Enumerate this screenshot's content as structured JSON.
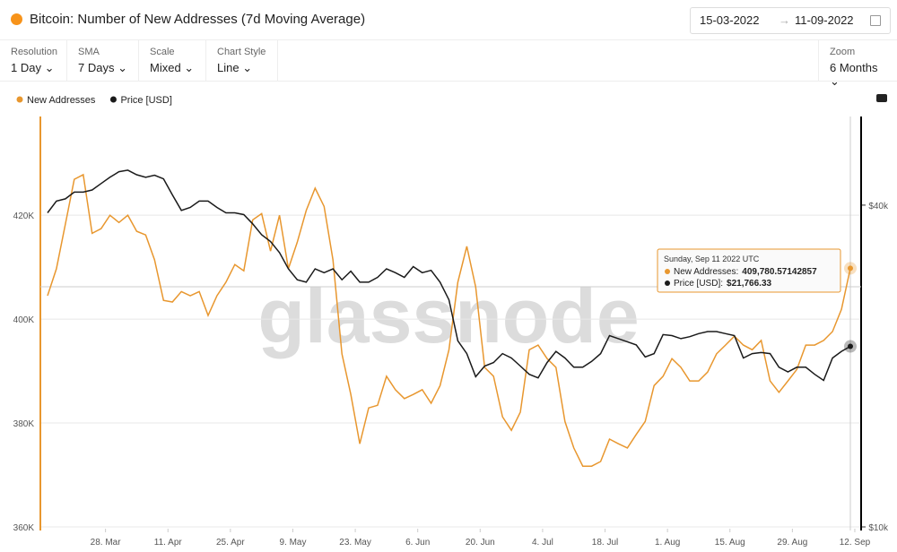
{
  "header": {
    "title": "Bitcoin: Number of New Addresses (7d Moving Average)",
    "date_from": "15-03-2022",
    "date_to": "11-09-2022"
  },
  "controls": [
    {
      "label": "Resolution",
      "value": "1 Day"
    },
    {
      "label": "SMA",
      "value": "7 Days"
    },
    {
      "label": "Scale",
      "value": "Mixed"
    },
    {
      "label": "Chart Style",
      "value": "Line"
    }
  ],
  "zoom": {
    "label": "Zoom",
    "value": "6 Months"
  },
  "watermark": "glassnode",
  "tooltip": {
    "title": "Sunday, Sep 11 2022 UTC",
    "items": [
      {
        "label": "New Addresses:",
        "value": "409,780.57142857"
      },
      {
        "label": "Price [USD]:",
        "value": "$21,766.33"
      }
    ]
  },
  "chart_data": {
    "type": "line",
    "x": [
      "2022-03-15",
      "2022-03-17",
      "2022-03-19",
      "2022-03-21",
      "2022-03-23",
      "2022-03-25",
      "2022-03-27",
      "2022-03-29",
      "2022-03-31",
      "2022-04-02",
      "2022-04-04",
      "2022-04-06",
      "2022-04-08",
      "2022-04-10",
      "2022-04-12",
      "2022-04-14",
      "2022-04-16",
      "2022-04-18",
      "2022-04-20",
      "2022-04-22",
      "2022-04-24",
      "2022-04-26",
      "2022-04-28",
      "2022-04-30",
      "2022-05-02",
      "2022-05-04",
      "2022-05-06",
      "2022-05-08",
      "2022-05-10",
      "2022-05-12",
      "2022-05-14",
      "2022-05-16",
      "2022-05-18",
      "2022-05-20",
      "2022-05-22",
      "2022-05-24",
      "2022-05-26",
      "2022-05-28",
      "2022-05-30",
      "2022-06-01",
      "2022-06-03",
      "2022-06-05",
      "2022-06-07",
      "2022-06-09",
      "2022-06-11",
      "2022-06-13",
      "2022-06-15",
      "2022-06-17",
      "2022-06-19",
      "2022-06-21",
      "2022-06-23",
      "2022-06-25",
      "2022-06-27",
      "2022-06-29",
      "2022-07-01",
      "2022-07-03",
      "2022-07-05",
      "2022-07-07",
      "2022-07-09",
      "2022-07-11",
      "2022-07-13",
      "2022-07-15",
      "2022-07-17",
      "2022-07-19",
      "2022-07-21",
      "2022-07-23",
      "2022-07-25",
      "2022-07-27",
      "2022-07-29",
      "2022-07-31",
      "2022-08-02",
      "2022-08-04",
      "2022-08-06",
      "2022-08-08",
      "2022-08-10",
      "2022-08-12",
      "2022-08-14",
      "2022-08-16",
      "2022-08-18",
      "2022-08-20",
      "2022-08-22",
      "2022-08-24",
      "2022-08-26",
      "2022-08-28",
      "2022-08-30",
      "2022-09-01",
      "2022-09-03",
      "2022-09-05",
      "2022-09-07",
      "2022-09-09",
      "2022-09-11"
    ],
    "series": [
      {
        "name": "New Addresses",
        "color": "#e8972f",
        "axis": "y",
        "values": [
          404500,
          409700,
          418300,
          426900,
          427800,
          416500,
          417400,
          420000,
          418600,
          420000,
          416900,
          416200,
          411400,
          403600,
          403300,
          405300,
          404500,
          405300,
          400700,
          404500,
          407100,
          410500,
          409300,
          419100,
          420300,
          413100,
          420000,
          409700,
          414800,
          420900,
          425200,
          421700,
          411400,
          393300,
          385500,
          376000,
          382900,
          383400,
          389000,
          386400,
          384700,
          385500,
          386400,
          383800,
          387200,
          394100,
          407100,
          414000,
          406200,
          390700,
          389000,
          381200,
          378600,
          382100,
          394100,
          395000,
          392400,
          390700,
          380300,
          375200,
          371700,
          371700,
          372600,
          376900,
          376000,
          375200,
          377800,
          380300,
          387200,
          389000,
          392400,
          390700,
          388100,
          388100,
          389800,
          393300,
          395000,
          396700,
          395000,
          394100,
          395900,
          388100,
          385900,
          388100,
          390300,
          395000,
          395000,
          395900,
          397600,
          401900,
          409780.57142857
        ]
      },
      {
        "name": "Price [USD]",
        "color": "#1a1a1a",
        "axis": "y2",
        "values": [
          38700,
          40700,
          41100,
          42300,
          42300,
          42700,
          43900,
          45100,
          46200,
          46500,
          45600,
          45100,
          45500,
          44800,
          41800,
          39100,
          39600,
          40700,
          40700,
          39600,
          38700,
          38700,
          38400,
          36900,
          35200,
          34200,
          32600,
          30400,
          29000,
          28700,
          30400,
          29900,
          30400,
          29000,
          30100,
          28700,
          28700,
          29300,
          30400,
          29900,
          29300,
          30700,
          29900,
          30200,
          28700,
          26600,
          22300,
          21100,
          19100,
          20000,
          20300,
          21100,
          20700,
          20000,
          19300,
          19000,
          20300,
          21300,
          20700,
          19900,
          19900,
          20400,
          21100,
          22800,
          22500,
          22200,
          21900,
          20800,
          21100,
          22900,
          22800,
          22500,
          22700,
          23000,
          23200,
          23200,
          23000,
          22800,
          20700,
          21100,
          21200,
          21100,
          19900,
          19500,
          19900,
          19900,
          19300,
          18800,
          20700,
          21300,
          21766.33
        ]
      }
    ],
    "ylim": [
      360000,
      439000
    ],
    "yticks": [
      {
        "value": 360000,
        "label": "360K"
      },
      {
        "value": 380000,
        "label": "380K"
      },
      {
        "value": 400000,
        "label": "400K"
      },
      {
        "value": 420000,
        "label": "420K"
      }
    ],
    "y2lim": [
      10000,
      58600
    ],
    "y2log": true,
    "y2ticks": [
      {
        "value": 10000,
        "label": "$10k"
      },
      {
        "value": 40000,
        "label": "$40k"
      }
    ],
    "xticks": [
      {
        "value": "2022-03-28",
        "label": "28. Mar"
      },
      {
        "value": "2022-04-11",
        "label": "11. Apr"
      },
      {
        "value": "2022-04-25",
        "label": "25. Apr"
      },
      {
        "value": "2022-05-09",
        "label": "9. May"
      },
      {
        "value": "2022-05-23",
        "label": "23. May"
      },
      {
        "value": "2022-06-06",
        "label": "6. Jun"
      },
      {
        "value": "2022-06-20",
        "label": "20. Jun"
      },
      {
        "value": "2022-07-04",
        "label": "4. Jul"
      },
      {
        "value": "2022-07-18",
        "label": "18. Jul"
      },
      {
        "value": "2022-08-01",
        "label": "1. Aug"
      },
      {
        "value": "2022-08-15",
        "label": "15. Aug"
      },
      {
        "value": "2022-08-29",
        "label": "29. Aug"
      },
      {
        "value": "2022-09-12",
        "label": "12. Sep"
      }
    ],
    "grid": true
  }
}
